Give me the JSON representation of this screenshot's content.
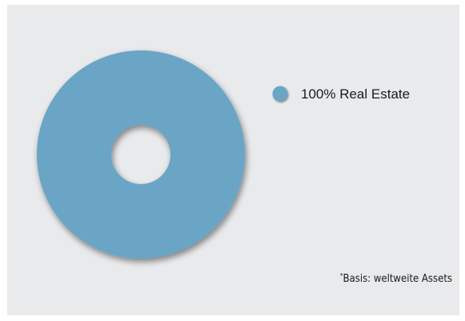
{
  "chart_data": {
    "type": "pie",
    "donut": true,
    "categories": [
      "Real Estate"
    ],
    "values": [
      100
    ],
    "legend": [
      {
        "label": "100% Real Estate",
        "color": "#6aa5c6"
      }
    ],
    "legend_position": "right",
    "colors": {
      "slice": "#6aa5c6",
      "background": "#e9eaec"
    }
  },
  "footnote": {
    "marker": "*",
    "text": "Basis: weltweite Assets"
  }
}
